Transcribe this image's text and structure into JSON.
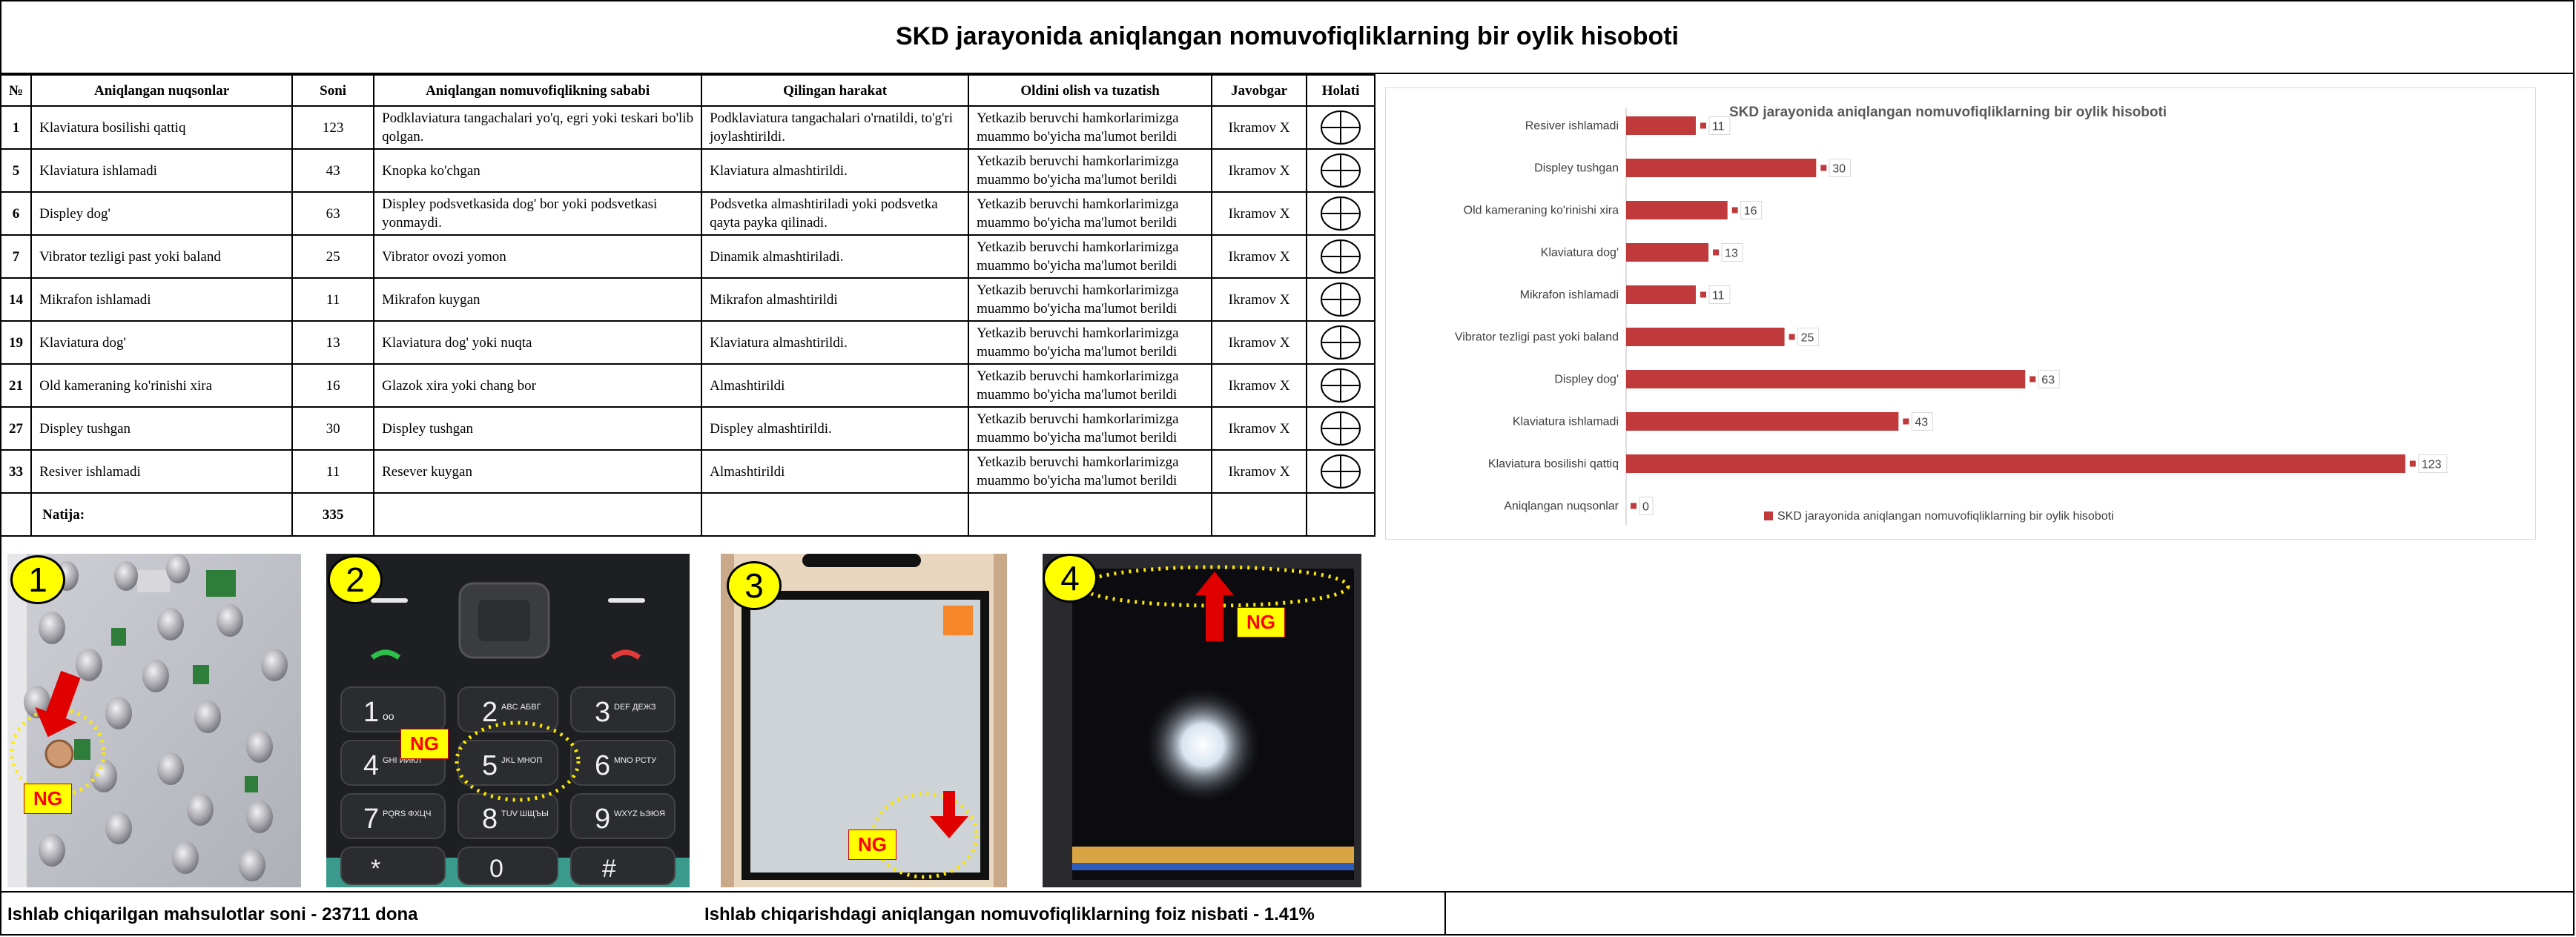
{
  "report": {
    "title": "SKD jarayonida aniqlangan nomuvofiqliklarning bir oylik hisoboti"
  },
  "table": {
    "headers": [
      "№",
      "Aniqlangan nuqsonlar",
      "Soni",
      "Aniqlangan nomuvofiqlikning sababi",
      "Qilingan harakat",
      "Oldini olish va tuzatish",
      "Javobgar",
      "Holati"
    ],
    "rows": [
      {
        "num": "1",
        "defect": "Klaviatura bosilishi qattiq",
        "count": "123",
        "cause": "Podklaviatura tangachalari yo'q, egri yoki teskari bo'lib qolgan.",
        "action": "Podklaviatura tangachalari o'rnatildi, to'g'ri joylashtirildi.",
        "prevent": "Yetkazib beruvchi hamkorlarimizga muammo bo'yicha ma'lumot berildi",
        "resp": "Ikramov X"
      },
      {
        "num": "5",
        "defect": "Klaviatura ishlamadi",
        "count": "43",
        "cause": "Knopka ko'chgan",
        "action": "Klaviatura almashtirildi.",
        "prevent": "Yetkazib beruvchi hamkorlarimizga muammo bo'yicha ma'lumot berildi",
        "resp": "Ikramov X"
      },
      {
        "num": "6",
        "defect": "Displey dog'",
        "count": "63",
        "cause": "Displey podsvetkasida dog' bor yoki podsvetkasi yonmaydi.",
        "action": "Podsvetka almashtiriladi yoki podsvetka qayta payka qilinadi.",
        "prevent": "Yetkazib beruvchi hamkorlarimizga muammo bo'yicha ma'lumot berildi",
        "resp": "Ikramov X"
      },
      {
        "num": "7",
        "defect": "Vibrator tezligi  past yoki baland",
        "count": "25",
        "cause": "Vibrator ovozi yomon",
        "action": "Dinamik almashtiriladi.",
        "prevent": "Yetkazib beruvchi hamkorlarimizga muammo bo'yicha ma'lumot berildi",
        "resp": "Ikramov X"
      },
      {
        "num": "14",
        "defect": "Mikrafon ishlamadi",
        "count": "11",
        "cause": "Mikrafon kuygan",
        "action": "Mikrafon almashtirildi",
        "prevent": "Yetkazib beruvchi hamkorlarimizga muammo bo'yicha ma'lumot berildi",
        "resp": "Ikramov X"
      },
      {
        "num": "19",
        "defect": "Klaviatura dog'",
        "count": "13",
        "cause": "Klaviatura dog' yoki nuqta",
        "action": "Klaviatura almashtirildi.",
        "prevent": "Yetkazib beruvchi hamkorlarimizga muammo bo'yicha ma'lumot berildi",
        "resp": "Ikramov X"
      },
      {
        "num": "21",
        "defect": "Old kameraning ko'rinishi xira",
        "count": "16",
        "cause": "Glazok xira yoki chang bor",
        "action": "Almashtirildi",
        "prevent": "Yetkazib beruvchi hamkorlarimizga muammo bo'yicha ma'lumot berildi",
        "resp": "Ikramov X"
      },
      {
        "num": "27",
        "defect": "Displey tushgan",
        "count": "30",
        "cause": "Displey tushgan",
        "action": "Displey almashtirildi.",
        "prevent": "Yetkazib beruvchi hamkorlarimizga muammo bo'yicha ma'lumot berildi",
        "resp": "Ikramov X"
      },
      {
        "num": "33",
        "defect": "Resiver ishlamadi",
        "count": "11",
        "cause": "Resever kuygan",
        "action": "Almashtirildi",
        "prevent": "Yetkazib beruvchi hamkorlarimizga muammo bo'yicha ma'lumot berildi",
        "resp": "Ikramov X"
      }
    ],
    "total_label": "Natija:",
    "total_value": "335"
  },
  "photos": {
    "badges": [
      "1",
      "2",
      "3",
      "4"
    ],
    "ng_label": "NG",
    "keypad": {
      "k1": "1",
      "k1s": "oo",
      "k2": "2",
      "k2s": "ABC АБВГ",
      "k3": "3",
      "k3s": "DEF ДЕЖЗ",
      "k4": "4",
      "k4s": "GHI ИЙКЛ",
      "k5": "5",
      "k5s": "JKL МНОП",
      "k6": "6",
      "k6s": "MNO РСТУ",
      "k7": "7",
      "k7s": "PQRS ФХЦЧ",
      "k8": "8",
      "k8s": "TUV ШЩЪЫ",
      "k9": "9",
      "k9s": "WXYZ ЬЭЮЯ",
      "k0": "0",
      "kstar": "*",
      "khash": "#"
    }
  },
  "footer": {
    "produced": "Ishlab chiqarilgan mahsulotlar soni  -  23711 dona",
    "ratio": "Ishlab chiqarishdagi aniqlangan nomuvofiqliklarning foiz nisbati  -  1.41%"
  },
  "chart_data": {
    "type": "bar",
    "orientation": "horizontal",
    "title": "SKD jarayonida aniqlangan nomuvofiqliklarning bir oylik hisoboti",
    "categories": [
      "Resiver ishlamadi",
      "Displey tushgan",
      "Old kameraning ko'rinishi xira",
      "Klaviatura dog'",
      "Mikrafon ishlamadi",
      "Vibrator tezligi past yoki baland",
      "Displey dog'",
      "Klaviatura ishlamadi",
      "Klaviatura bosilishi qattiq",
      "Aniqlangan nuqsonlar"
    ],
    "values": [
      11,
      30,
      16,
      13,
      11,
      25,
      63,
      43,
      123,
      0
    ],
    "data_labels": [
      "11",
      "30",
      "16",
      "13",
      "11",
      "25",
      "63",
      "43",
      "123",
      "0"
    ],
    "xticks": [
      "0",
      "20",
      "40",
      "60",
      "80",
      "100",
      "120",
      "140"
    ],
    "xlim": [
      0,
      140
    ],
    "legend": "SKD jarayonida aniqlangan nomuvofiqliklarning bir oylik hisoboti",
    "legend_position": "bottom",
    "bar_color": "#c0393b",
    "grid": false
  },
  "colors": {
    "badge": "#ffff00",
    "ng_text": "#ff0000",
    "arrow": "#e00000",
    "dotted": "#ffea00"
  }
}
